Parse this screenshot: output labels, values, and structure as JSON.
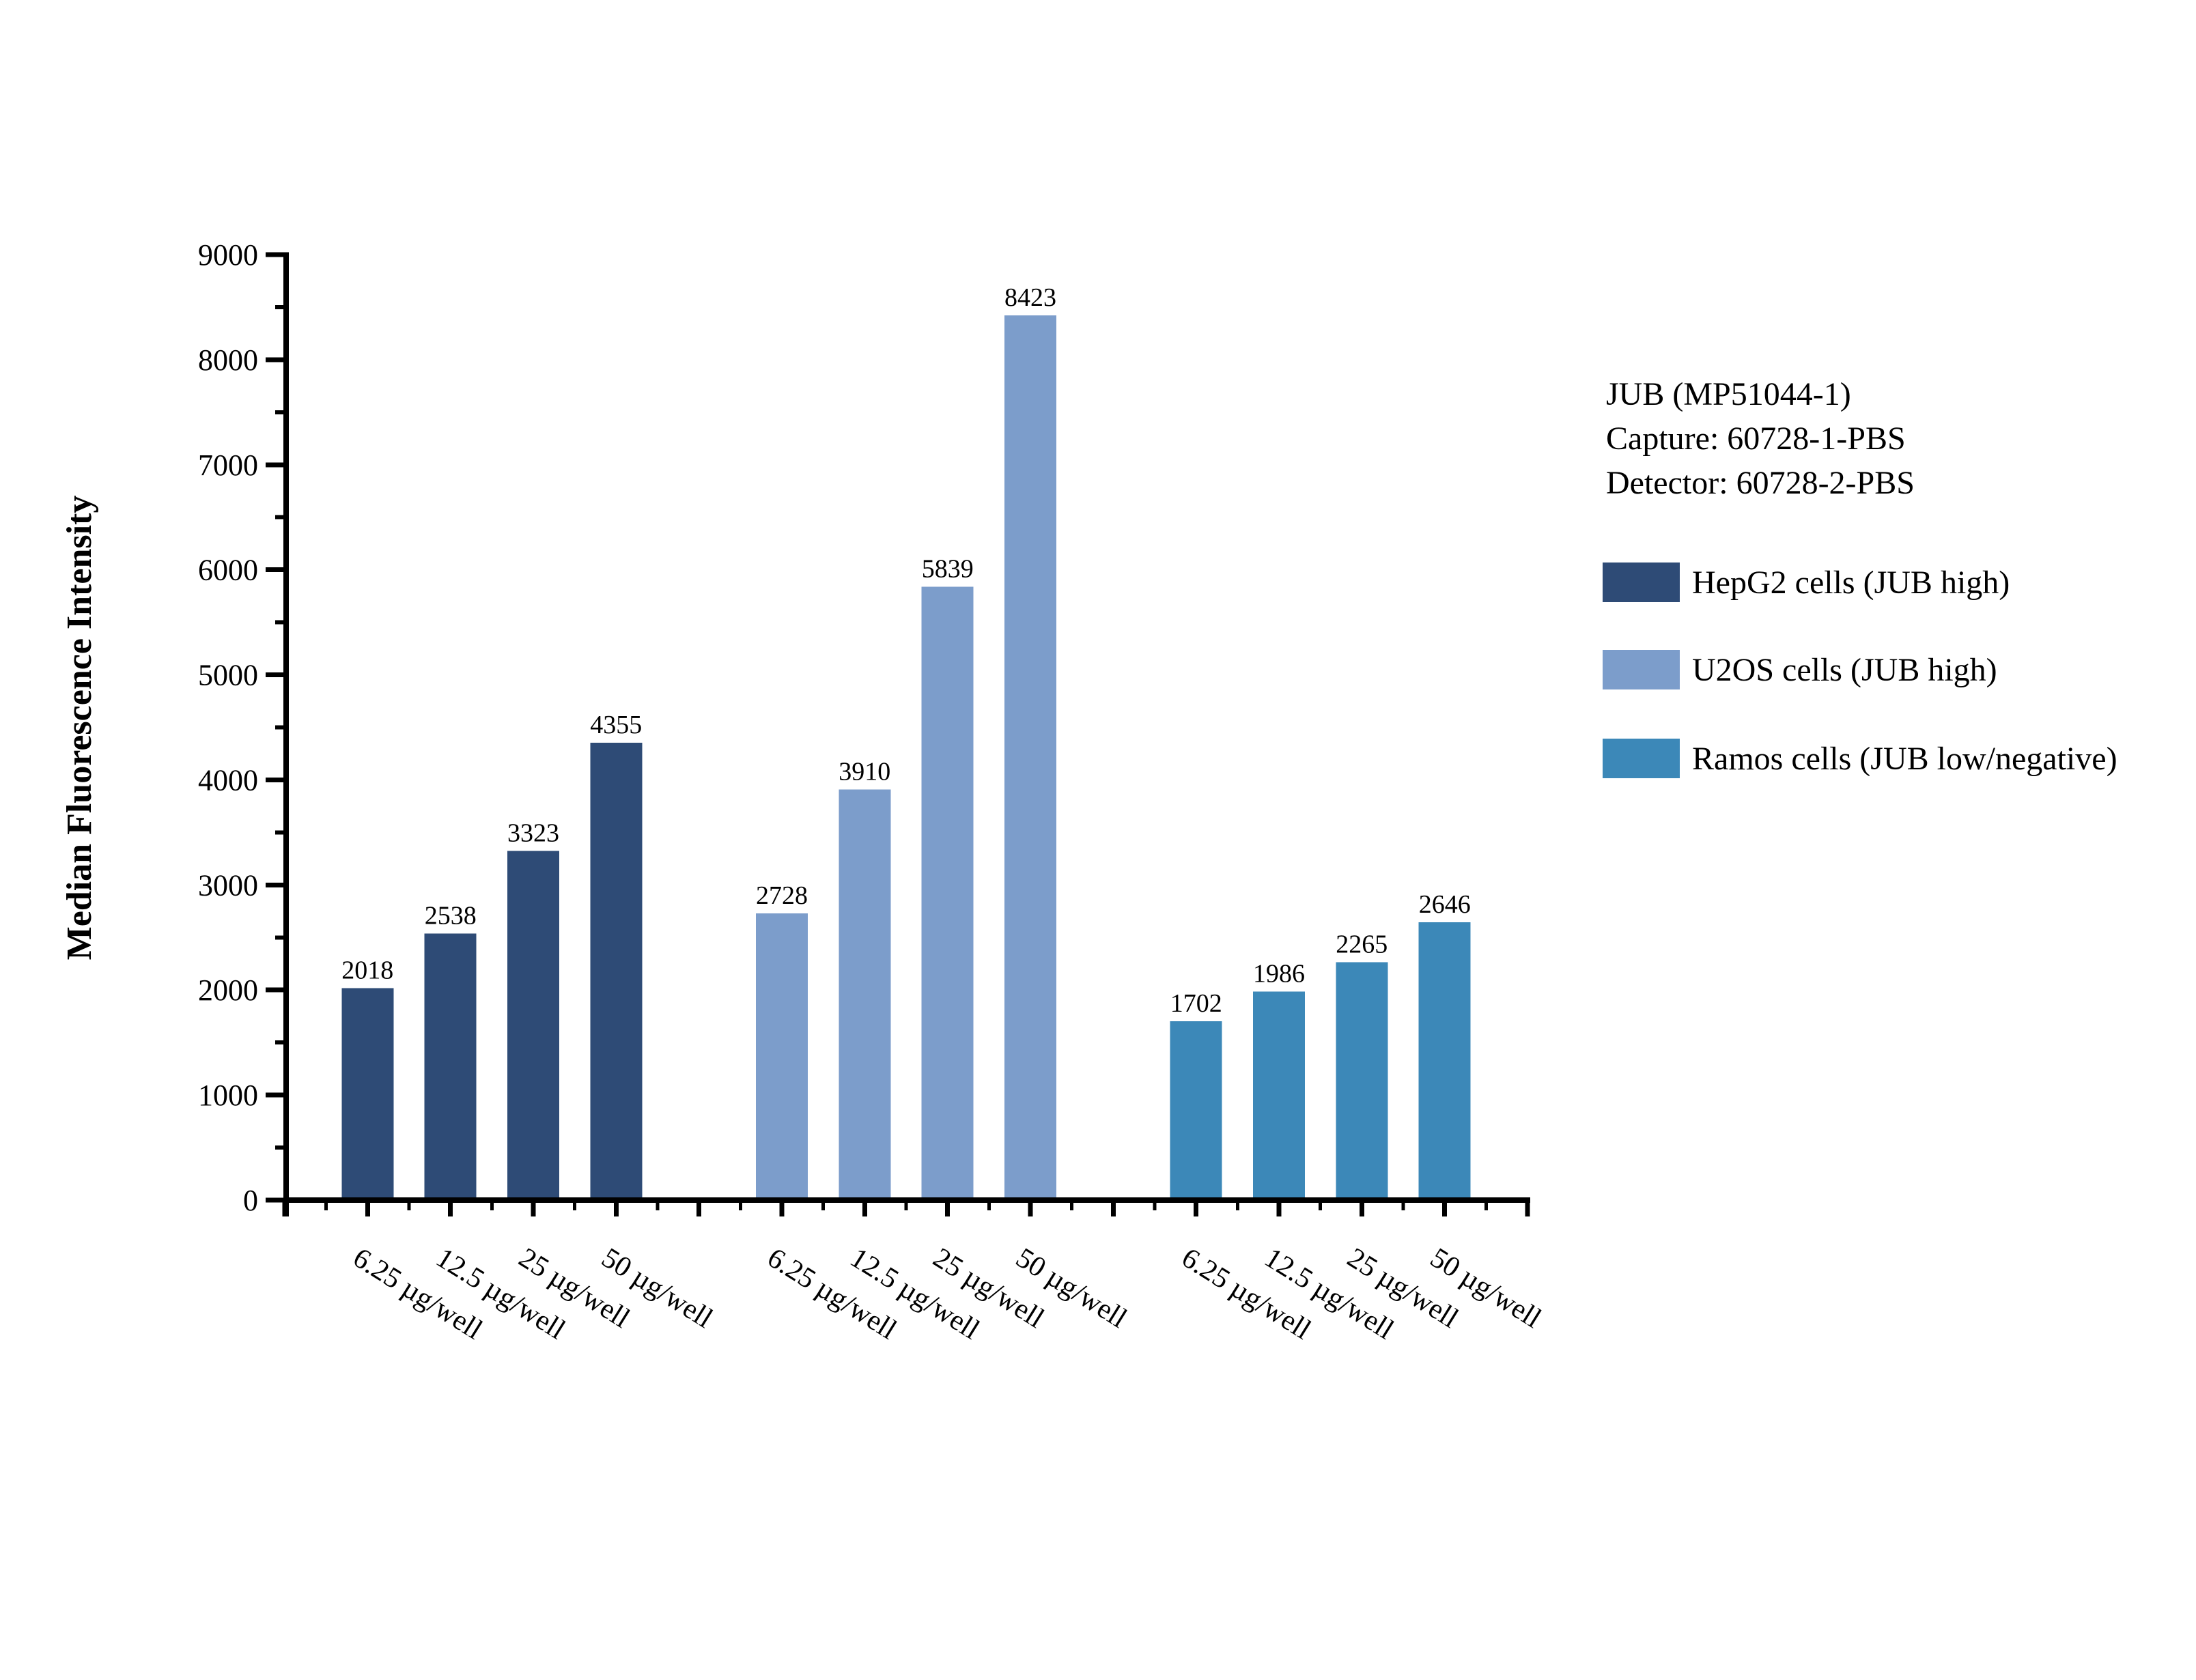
{
  "chart_data": {
    "type": "bar",
    "title": "",
    "xlabel": "",
    "ylabel": "Median Fluorescence Intensity",
    "ylim": [
      0,
      9000
    ],
    "y_major_step": 1000,
    "y_minor_step": 500,
    "y_tick_labels": [
      "0",
      "1000",
      "2000",
      "3000",
      "4000",
      "5000",
      "6000",
      "7000",
      "8000",
      "9000"
    ],
    "grid": false,
    "legend_position": "right",
    "categories": [
      "6.25 µg/well",
      "12.5 µg/well",
      "25 µg/well",
      "50 µg/well"
    ],
    "series": [
      {
        "name": "HepG2 cells (JUB high)",
        "color": "#2E4B76",
        "values": [
          2018,
          2538,
          3323,
          4355
        ]
      },
      {
        "name": "U2OS cells (JUB high)",
        "color": "#7C9DCB",
        "values": [
          2728,
          3910,
          5839,
          8423
        ]
      },
      {
        "name": "Ramos cells (JUB low/negative)",
        "color": "#3C88B8",
        "values": [
          1702,
          1986,
          2265,
          2646
        ]
      }
    ],
    "annotation_lines": [
      "JUB (MP51044-1)",
      "Capture: 60728-1-PBS",
      "Detector: 60728-2-PBS"
    ],
    "axis_color": "#000000",
    "text_color": "#000000",
    "background_color": "#FFFFFF"
  }
}
